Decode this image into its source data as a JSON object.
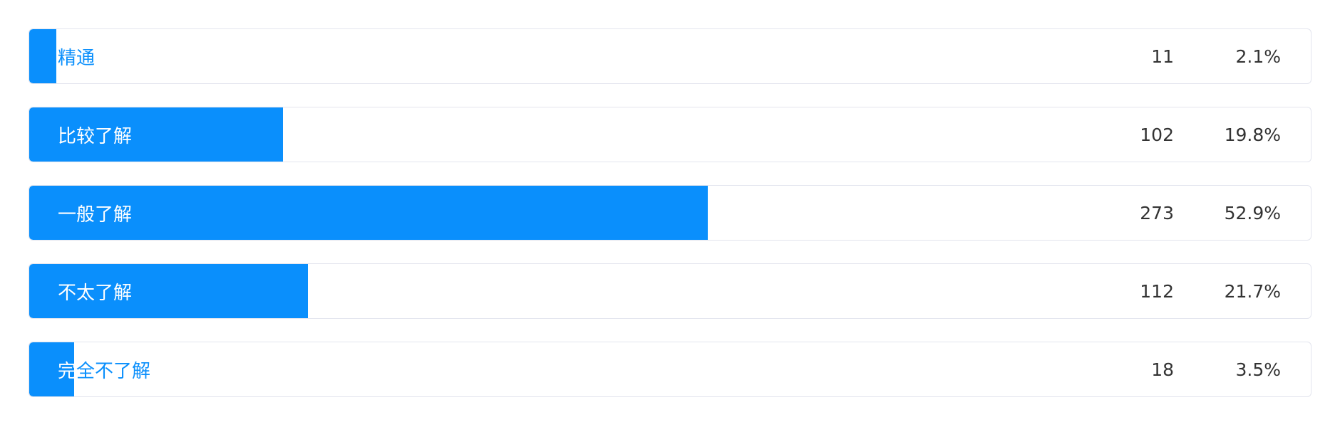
{
  "colors": {
    "bar": "#0a8ffc",
    "label_on_bar": "#ffffff",
    "label_off_bar": "#0a8ffc",
    "value_text": "#333333",
    "row_border": "#e3e5ee"
  },
  "chart_data": {
    "type": "bar",
    "orientation": "horizontal",
    "categories": [
      "精通",
      "比较了解",
      "一般了解",
      "不太了解",
      "完全不了解"
    ],
    "values": [
      11,
      102,
      273,
      112,
      18
    ],
    "percent_labels": [
      "2.1%",
      "19.8%",
      "52.9%",
      "21.7%",
      "3.5%"
    ],
    "percent_values": [
      2.1,
      19.8,
      52.9,
      21.7,
      3.5
    ],
    "count_labels": [
      "11",
      "102",
      "273",
      "112",
      "18"
    ],
    "title": "",
    "xlabel": "",
    "ylabel": "",
    "grid": false,
    "legend": "none"
  }
}
